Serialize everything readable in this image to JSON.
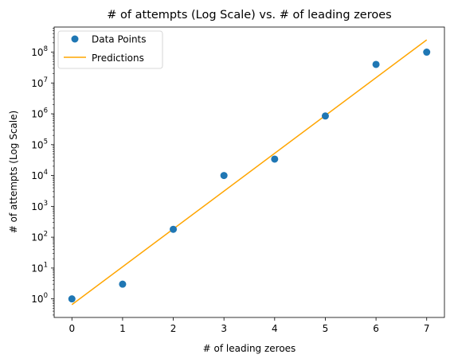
{
  "chart_data": {
    "type": "scatter",
    "title": "# of attempts (Log Scale) vs. # of leading zeroes",
    "xlabel": "# of leading zeroes",
    "ylabel": "# of attempts (Log Scale)",
    "yscale": "log",
    "xlim": [
      -0.35,
      7.35
    ],
    "ylim": [
      0.25,
      650000000
    ],
    "x_ticks": [
      0,
      1,
      2,
      3,
      4,
      5,
      6,
      7
    ],
    "y_ticks": [
      1,
      10,
      100,
      1000,
      10000,
      100000,
      1000000,
      10000000,
      100000000
    ],
    "y_tick_exponents": [
      "0",
      "1",
      "2",
      "3",
      "4",
      "5",
      "6",
      "7",
      "8"
    ],
    "y_tick_base": "10",
    "legend": {
      "placement": "top-left"
    },
    "series": [
      {
        "name": "Data Points",
        "kind": "scatter",
        "color": "#1f77b4",
        "x": [
          0,
          1,
          2,
          3,
          4,
          5,
          6,
          7
        ],
        "y": [
          1,
          3,
          180,
          10000,
          34000,
          850000,
          40000000,
          100000000
        ]
      },
      {
        "name": "Predictions",
        "kind": "line",
        "color": "#ffa500",
        "x": [
          0,
          7
        ],
        "y": [
          0.65,
          250000000
        ]
      }
    ]
  }
}
